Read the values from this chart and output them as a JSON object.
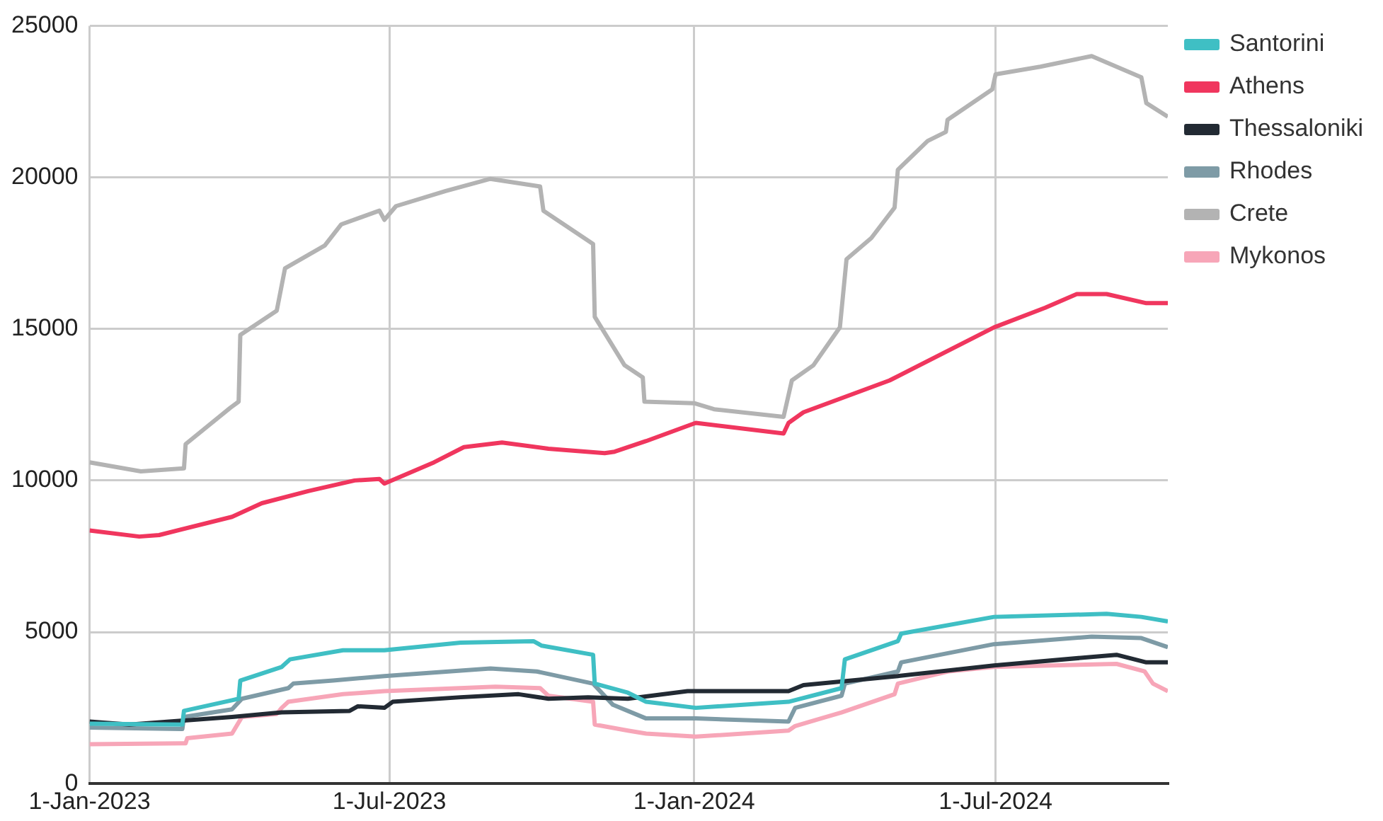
{
  "chart_data": {
    "type": "line",
    "xlim": [
      "2023-01-01",
      "2024-10-13"
    ],
    "xticks": [
      {
        "value": "2023-01-01",
        "label": "1-Jan-2023"
      },
      {
        "value": "2023-07-01",
        "label": "1-Jul-2023"
      },
      {
        "value": "2024-01-01",
        "label": "1-Jan-2024"
      },
      {
        "value": "2024-07-01",
        "label": "1-Jul-2024"
      }
    ],
    "ylim": [
      0,
      25000
    ],
    "yticks": [
      0,
      5000,
      10000,
      15000,
      20000,
      25000
    ],
    "grid": true,
    "legend": "top right",
    "marker": "none",
    "line_style": "solid",
    "series": [
      {
        "name": "Santorini",
        "color": "#3fbfc4",
        "x": [
          "2023-01-01",
          "2023-02-26",
          "2023-02-27",
          "2023-03-28",
          "2023-04-01",
          "2023-04-02",
          "2023-04-27",
          "2023-05-02",
          "2023-06-03",
          "2023-06-28",
          "2023-08-13",
          "2023-09-26",
          "2023-10-01",
          "2023-11-01",
          "2023-11-02",
          "2023-11-22",
          "2023-12-03",
          "2024-01-02",
          "2024-02-27",
          "2024-03-30",
          "2024-04-01",
          "2024-05-03",
          "2024-05-05",
          "2024-06-30",
          "2024-09-06",
          "2024-09-27",
          "2024-10-13"
        ],
        "values": [
          1980,
          1950,
          2400,
          2750,
          2800,
          3400,
          3850,
          4100,
          4400,
          4400,
          4650,
          4700,
          4550,
          4250,
          3300,
          3000,
          2700,
          2500,
          2700,
          3150,
          4100,
          4700,
          4950,
          5500,
          5600,
          5500,
          5350
        ]
      },
      {
        "name": "Athens",
        "color": "#f0365e",
        "x": [
          "2023-01-01",
          "2023-01-31",
          "2023-02-12",
          "2023-03-28",
          "2023-04-15",
          "2023-05-13",
          "2023-06-10",
          "2023-06-25",
          "2023-06-28",
          "2023-07-28",
          "2023-08-15",
          "2023-09-07",
          "2023-10-05",
          "2023-11-08",
          "2023-11-14",
          "2023-12-03",
          "2023-12-28",
          "2024-01-02",
          "2024-02-24",
          "2024-02-27",
          "2024-03-07",
          "2024-04-28",
          "2024-06-30",
          "2024-07-31",
          "2024-08-19",
          "2024-09-06",
          "2024-09-30",
          "2024-10-13"
        ],
        "values": [
          8350,
          8150,
          8200,
          8800,
          9250,
          9650,
          10000,
          10050,
          9900,
          10600,
          11100,
          11250,
          11050,
          10900,
          10950,
          11300,
          11800,
          11900,
          11550,
          11900,
          12250,
          13300,
          15050,
          15700,
          16150,
          16150,
          15850,
          15850
        ]
      },
      {
        "name": "Thessaloniki",
        "color": "#222a33",
        "x": [
          "2023-01-01",
          "2023-01-25",
          "2023-03-28",
          "2023-04-27",
          "2023-06-07",
          "2023-06-12",
          "2023-06-28",
          "2023-07-03",
          "2023-08-13",
          "2023-09-17",
          "2023-10-05",
          "2023-10-29",
          "2023-11-22",
          "2023-12-28",
          "2024-02-27",
          "2024-03-07",
          "2024-05-03",
          "2024-06-30",
          "2024-09-12",
          "2024-09-30",
          "2024-10-13"
        ],
        "values": [
          2050,
          1950,
          2200,
          2350,
          2400,
          2550,
          2500,
          2700,
          2850,
          2950,
          2800,
          2850,
          2800,
          3050,
          3050,
          3250,
          3550,
          3900,
          4250,
          4000,
          4000
        ]
      },
      {
        "name": "Rhodes",
        "color": "#7e9ba6",
        "x": [
          "2023-01-01",
          "2023-02-26",
          "2023-02-27",
          "2023-03-28",
          "2023-04-03",
          "2023-05-01",
          "2023-05-04",
          "2023-05-28",
          "2023-06-28",
          "2023-08-31",
          "2023-09-28",
          "2023-11-01",
          "2023-11-13",
          "2023-12-03",
          "2024-01-02",
          "2024-02-27",
          "2024-03-02",
          "2024-03-30",
          "2024-04-01",
          "2024-05-03",
          "2024-05-05",
          "2024-06-30",
          "2024-08-28",
          "2024-09-27",
          "2024-10-13"
        ],
        "values": [
          1850,
          1800,
          2200,
          2450,
          2800,
          3150,
          3300,
          3400,
          3550,
          3800,
          3700,
          3300,
          2600,
          2150,
          2150,
          2050,
          2500,
          2900,
          3300,
          3700,
          4000,
          4600,
          4850,
          4800,
          4500
        ]
      },
      {
        "name": "Crete",
        "color": "#b3b3b3",
        "x": [
          "2023-01-01",
          "2023-02-01",
          "2023-02-27",
          "2023-02-28",
          "2023-03-27",
          "2023-04-01",
          "2023-04-02",
          "2023-04-24",
          "2023-04-29",
          "2023-05-23",
          "2023-06-02",
          "2023-06-25",
          "2023-06-28",
          "2023-07-05",
          "2023-08-04",
          "2023-08-31",
          "2023-09-30",
          "2023-10-02",
          "2023-11-01",
          "2023-11-02",
          "2023-11-20",
          "2023-12-01",
          "2023-12-02",
          "2024-01-01",
          "2024-01-13",
          "2024-02-24",
          "2024-02-29",
          "2024-03-13",
          "2024-03-29",
          "2024-04-02",
          "2024-04-17",
          "2024-05-01",
          "2024-05-03",
          "2024-05-21",
          "2024-06-01",
          "2024-06-02",
          "2024-06-29",
          "2024-07-01",
          "2024-07-28",
          "2024-08-28",
          "2024-09-27",
          "2024-09-30",
          "2024-10-13"
        ],
        "values": [
          10600,
          10300,
          10400,
          11200,
          12400,
          12600,
          14800,
          15600,
          17000,
          17750,
          18450,
          18900,
          18600,
          19050,
          19550,
          19950,
          19700,
          18900,
          17800,
          15400,
          13800,
          13400,
          12600,
          12550,
          12350,
          12100,
          13300,
          13800,
          15050,
          17300,
          18000,
          19000,
          20250,
          21200,
          21500,
          21900,
          22900,
          23400,
          23650,
          24000,
          23300,
          22450,
          22000
        ]
      },
      {
        "name": "Mykonos",
        "color": "#f7a6b8",
        "x": [
          "2023-01-01",
          "2023-02-28",
          "2023-03-01",
          "2023-03-28",
          "2023-04-03",
          "2023-04-24",
          "2023-04-27",
          "2023-05-01",
          "2023-06-03",
          "2023-06-28",
          "2023-09-03",
          "2023-09-30",
          "2023-10-05",
          "2023-11-01",
          "2023-11-02",
          "2023-11-22",
          "2023-12-03",
          "2024-01-02",
          "2024-02-27",
          "2024-03-02",
          "2024-03-30",
          "2024-05-01",
          "2024-05-03",
          "2024-06-02",
          "2024-06-30",
          "2024-09-12",
          "2024-09-29",
          "2024-10-04",
          "2024-10-13"
        ],
        "values": [
          1300,
          1330,
          1500,
          1650,
          2200,
          2300,
          2500,
          2700,
          2950,
          3050,
          3200,
          3150,
          2900,
          2700,
          1950,
          1750,
          1650,
          1550,
          1750,
          1900,
          2350,
          2950,
          3300,
          3700,
          3850,
          3950,
          3700,
          3300,
          3050
        ]
      }
    ]
  }
}
